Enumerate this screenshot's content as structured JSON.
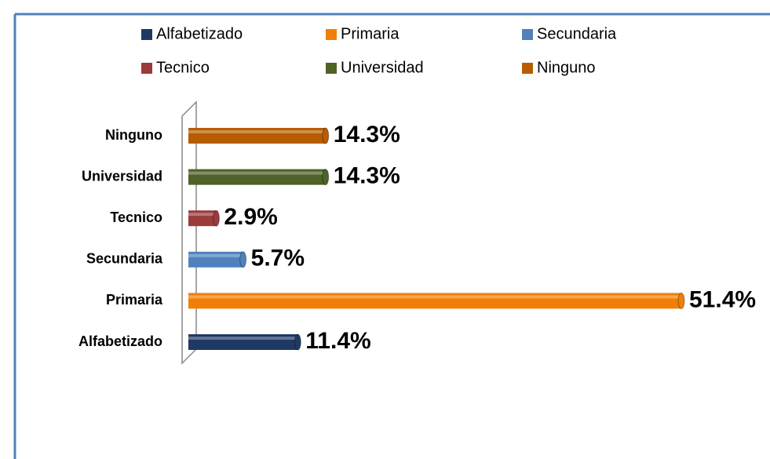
{
  "chart_data": {
    "type": "bar",
    "orientation": "horizontal",
    "categories": [
      "Alfabetizado",
      "Primaria",
      "Secundaria",
      "Tecnico",
      "Universidad",
      "Ninguno"
    ],
    "values": [
      11.4,
      51.4,
      5.7,
      2.9,
      14.3,
      14.3
    ],
    "value_labels": [
      "11.4%",
      "51.4%",
      "5.7%",
      "2.9%",
      "14.3%",
      "14.3%"
    ],
    "colors": [
      "#1f3864",
      "#f07f09",
      "#4f81bd",
      "#9b3b3b",
      "#4f6228",
      "#b85c00"
    ],
    "legend": "top"
  }
}
